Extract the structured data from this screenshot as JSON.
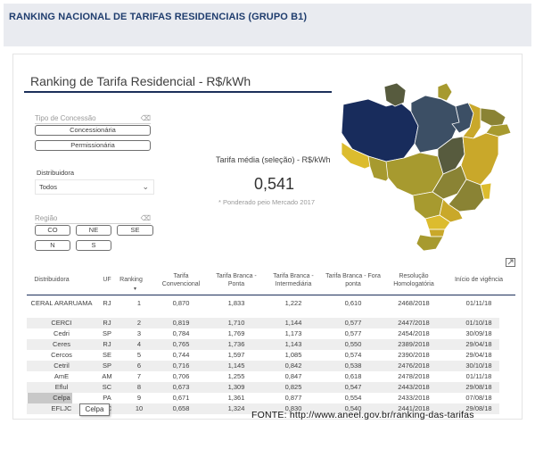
{
  "header": {
    "title": "RANKING NACIONAL DE TARIFAS RESIDENCIAIS (GRUPO B1)"
  },
  "report": {
    "title": "Ranking de Tarifa Residencial - R$/kWh",
    "tipo_concessao": {
      "label": "Tipo de Concessão",
      "options": [
        "Concessionária",
        "Permissionária"
      ]
    },
    "distribuidora": {
      "label": "Distribuidora",
      "value": "Todos"
    },
    "regiao": {
      "label": "Região",
      "options": [
        "CO",
        "NE",
        "SE",
        "N",
        "S"
      ]
    },
    "kpi": {
      "caption": "Tarifa média (seleção) - R$/kWh",
      "value": "0,541",
      "note": "* Ponderado peio Mercado 2017"
    },
    "map": {
      "colors": {
        "navy": "#182c5c",
        "slate": "#3c4f65",
        "olive": "#575b3e",
        "dark_khaki": "#8a8334",
        "khaki": "#a79a2f",
        "gold": "#c9a82a",
        "yellow": "#dcbc2e"
      }
    },
    "table": {
      "columns": [
        "Distribuidora",
        "UF",
        "Ranking",
        "Tarifa Convencional",
        "Tarifa Branca - Ponta",
        "Tarifa Branca - Intermediária",
        "Tarifa Branca - Fora ponta",
        "Resolução Homologatória",
        "Início de vigência"
      ],
      "rows": [
        [
          "CERAL ARARUAMA",
          "RJ",
          "1",
          "0,870",
          "1,833",
          "1,222",
          "0,610",
          "2468/2018",
          "01/11/18"
        ],
        [
          "CERCI",
          "RJ",
          "2",
          "0,819",
          "1,710",
          "1,144",
          "0,577",
          "2447/2018",
          "01/10/18"
        ],
        [
          "Cedri",
          "SP",
          "3",
          "0,784",
          "1,769",
          "1,173",
          "0,577",
          "2454/2018",
          "30/09/18"
        ],
        [
          "Ceres",
          "RJ",
          "4",
          "0,765",
          "1,736",
          "1,143",
          "0,550",
          "2389/2018",
          "29/04/18"
        ],
        [
          "Cercos",
          "SE",
          "5",
          "0,744",
          "1,597",
          "1,085",
          "0,574",
          "2390/2018",
          "29/04/18"
        ],
        [
          "Cetril",
          "SP",
          "6",
          "0,716",
          "1,145",
          "0,842",
          "0,538",
          "2476/2018",
          "30/10/18"
        ],
        [
          "AmE",
          "AM",
          "7",
          "0,706",
          "1,255",
          "0,847",
          "0,618",
          "2478/2018",
          "01/11/18"
        ],
        [
          "Eflul",
          "SC",
          "8",
          "0,673",
          "1,309",
          "0,825",
          "0,547",
          "2443/2018",
          "29/08/18"
        ],
        [
          "Celpa",
          "PA",
          "9",
          "0,671",
          "1,361",
          "0,877",
          "0,554",
          "2433/2018",
          "07/08/18"
        ],
        [
          "EFLJC",
          "SC",
          "10",
          "0,658",
          "1,324",
          "0,830",
          "0,540",
          "2441/2018",
          "29/08/18"
        ]
      ],
      "selected_row": 9
    },
    "tooltip": "Celpa"
  },
  "footer": {
    "source": "FONTE: http://www.aneel.gov.br/ranking-das-tarifas"
  },
  "icons": [
    "eraser-icon",
    "chevron-down-icon",
    "expand-icon"
  ]
}
